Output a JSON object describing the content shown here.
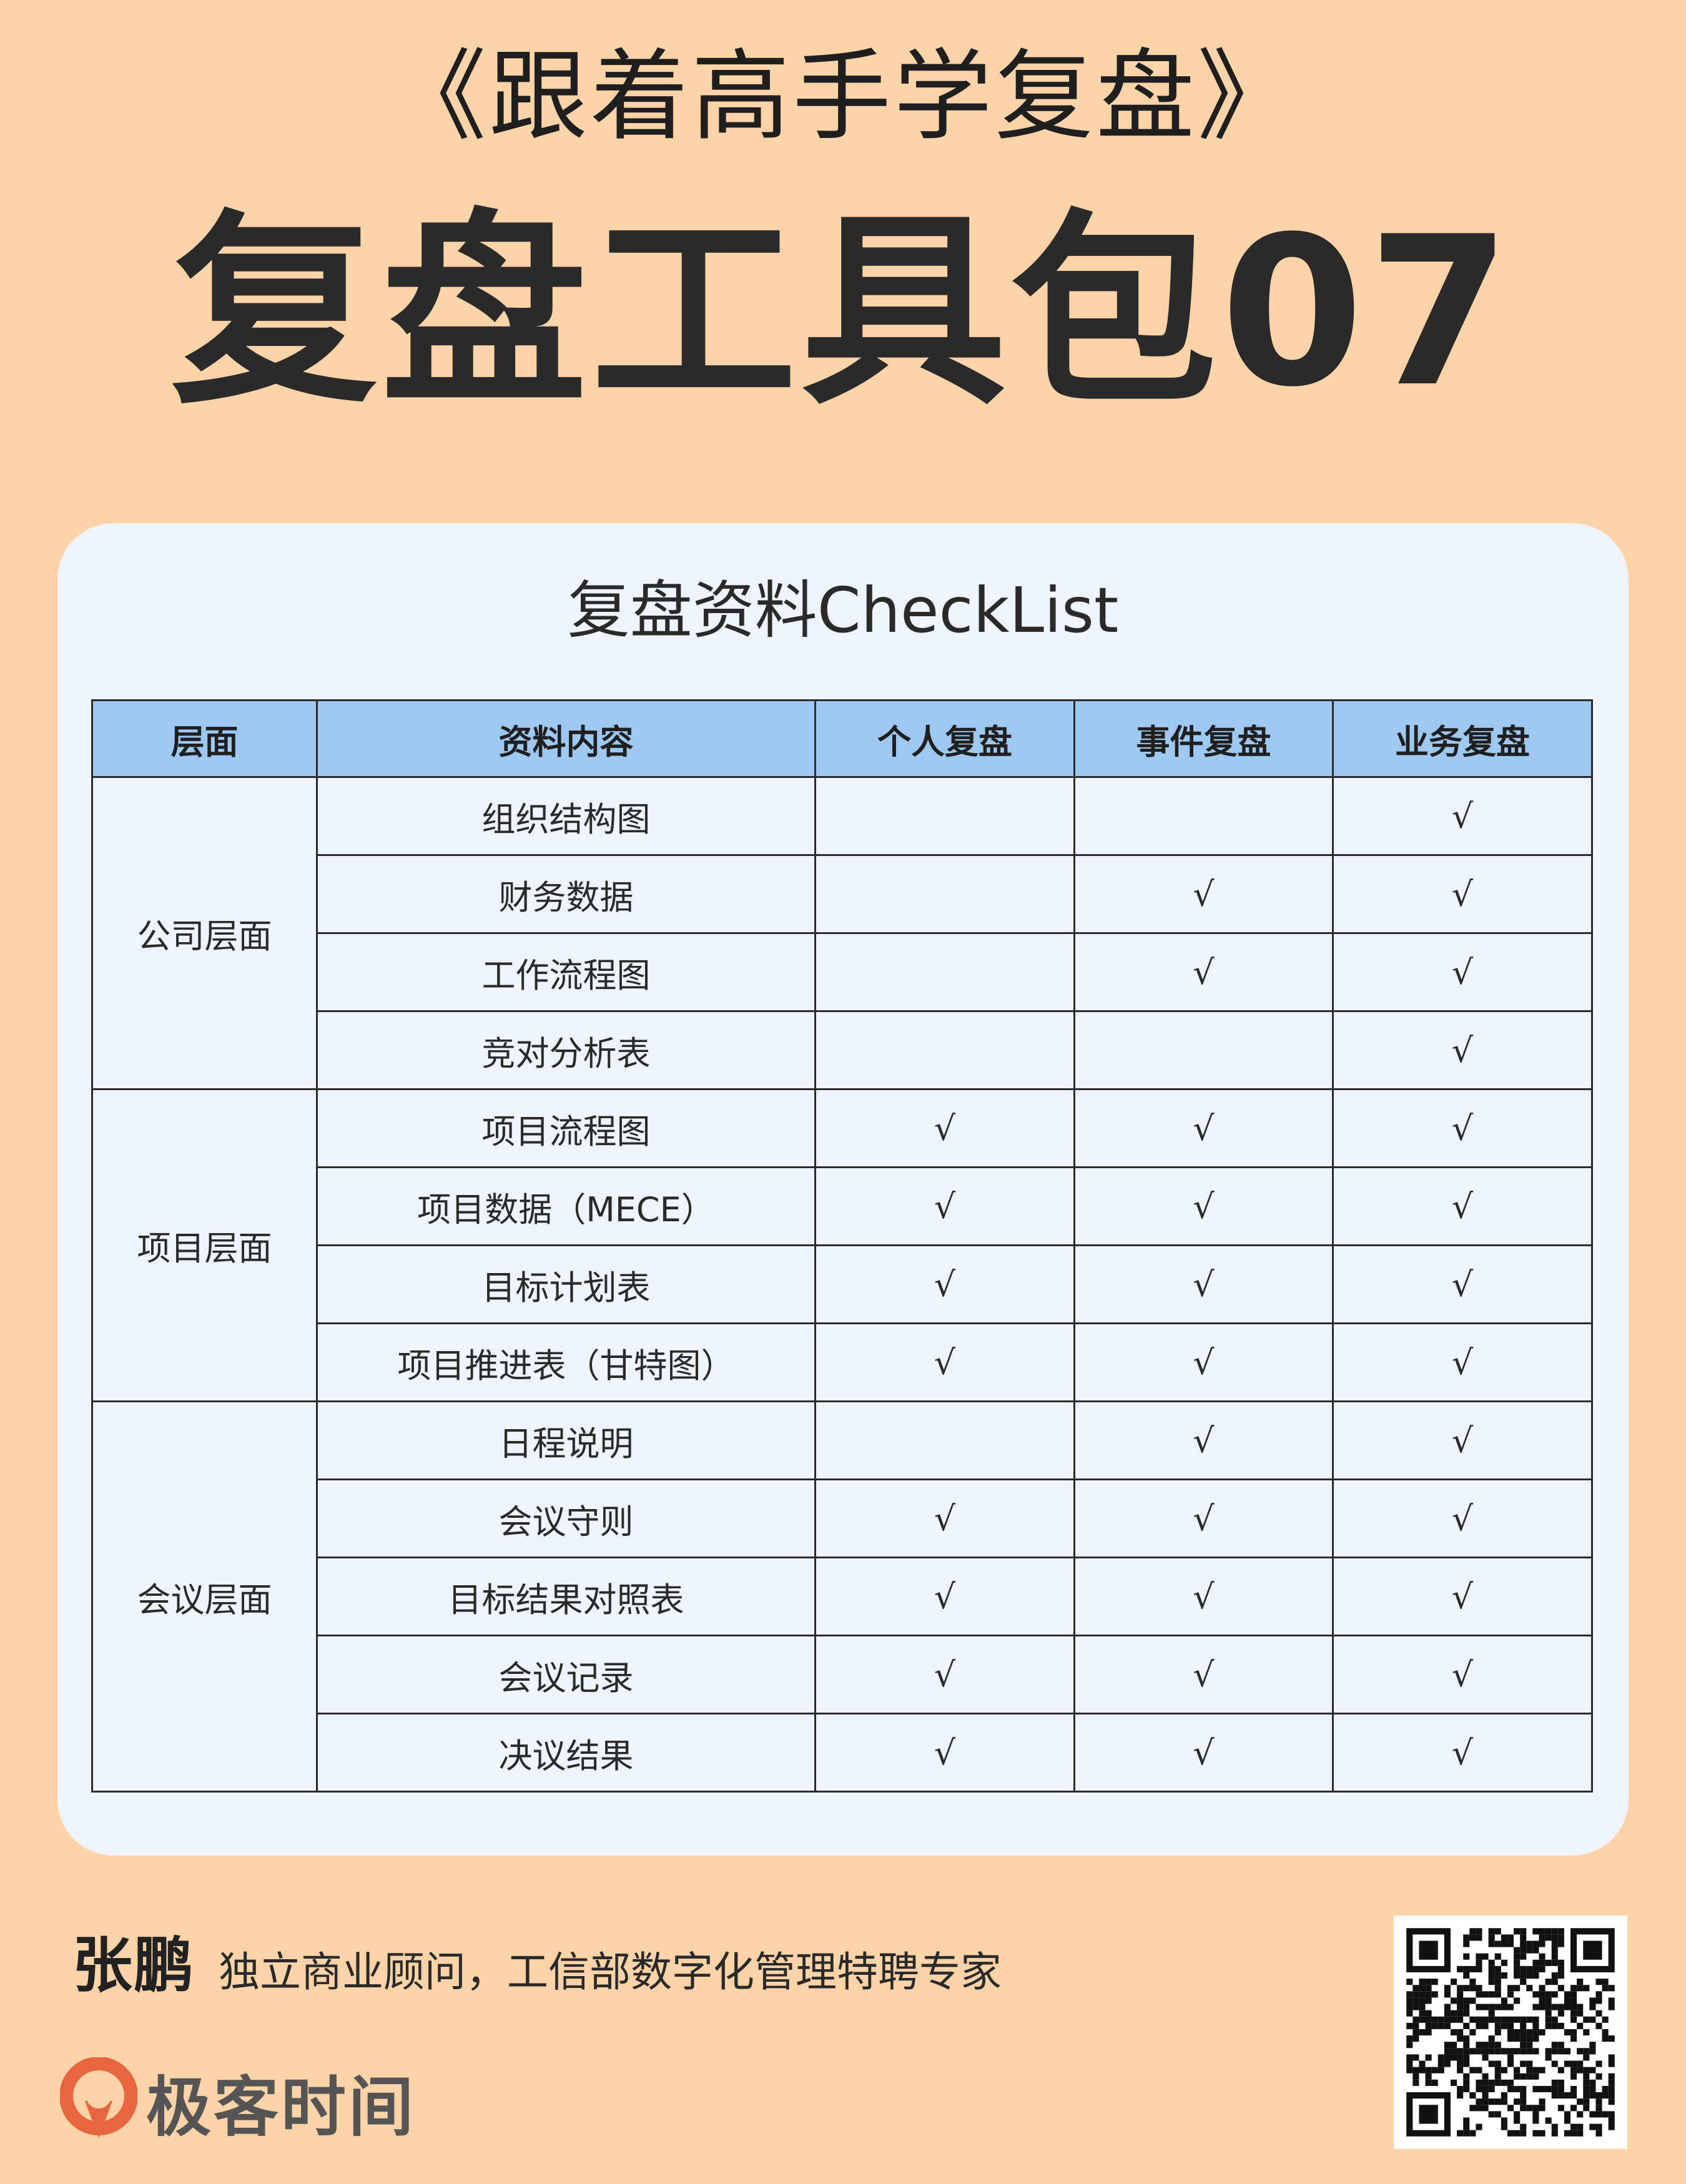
{
  "header": {
    "subtitle": "《跟着高手学复盘》",
    "title": "复盘工具包07"
  },
  "card": {
    "title": "复盘资料CheckList"
  },
  "table": {
    "columns": [
      "层面",
      "资料内容",
      "个人复盘",
      "事件复盘",
      "业务复盘"
    ],
    "check_mark": "√",
    "groups": [
      {
        "level": "公司层面",
        "rows": [
          {
            "item": "组织结构图",
            "personal": "",
            "event": "",
            "business": "√"
          },
          {
            "item": "财务数据",
            "personal": "",
            "event": "√",
            "business": "√"
          },
          {
            "item": "工作流程图",
            "personal": "",
            "event": "√",
            "business": "√"
          },
          {
            "item": "竞对分析表",
            "personal": "",
            "event": "",
            "business": "√"
          }
        ]
      },
      {
        "level": "项目层面",
        "rows": [
          {
            "item": "项目流程图",
            "personal": "√",
            "event": "√",
            "business": "√"
          },
          {
            "item": "项目数据（MECE）",
            "personal": "√",
            "event": "√",
            "business": "√"
          },
          {
            "item": "目标计划表",
            "personal": "√",
            "event": "√",
            "business": "√"
          },
          {
            "item": "项目推进表（甘特图）",
            "personal": "√",
            "event": "√",
            "business": "√"
          }
        ]
      },
      {
        "level": "会议层面",
        "rows": [
          {
            "item": "日程说明",
            "personal": "",
            "event": "√",
            "business": "√"
          },
          {
            "item": "会议守则",
            "personal": "√",
            "event": "√",
            "business": "√"
          },
          {
            "item": "目标结果对照表",
            "personal": "√",
            "event": "√",
            "business": "√"
          },
          {
            "item": "会议记录",
            "personal": "√",
            "event": "√",
            "business": "√"
          },
          {
            "item": "决议结果",
            "personal": "√",
            "event": "√",
            "business": "√"
          }
        ]
      }
    ]
  },
  "footer": {
    "author_name": "张鹏",
    "author_desc": "独立商业顾问，工信部数字化管理特聘专家",
    "brand": "极客时间",
    "brand_color": "#e8663d",
    "qr_icon": "qr-code-icon"
  }
}
